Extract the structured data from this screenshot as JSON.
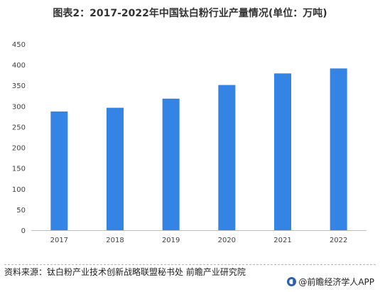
{
  "title": "图表2：2017-2022年中国钛白粉行业产量情况(单位：万吨)",
  "chart_data": {
    "type": "bar",
    "categories": [
      "2017",
      "2018",
      "2019",
      "2020",
      "2021",
      "2022"
    ],
    "values": [
      287,
      296,
      318,
      351,
      379,
      391
    ],
    "ylim": [
      0,
      450
    ],
    "yticks": [
      0,
      50,
      100,
      150,
      200,
      250,
      300,
      350,
      400,
      450
    ],
    "grid": false,
    "legend": "none",
    "bar_color": "#3384e5"
  },
  "footer": {
    "source": "资料来源：钛白粉产业技术创新战略联盟秘书处 前瞻产业研究院",
    "brand": "@前瞻经济学人APP"
  }
}
